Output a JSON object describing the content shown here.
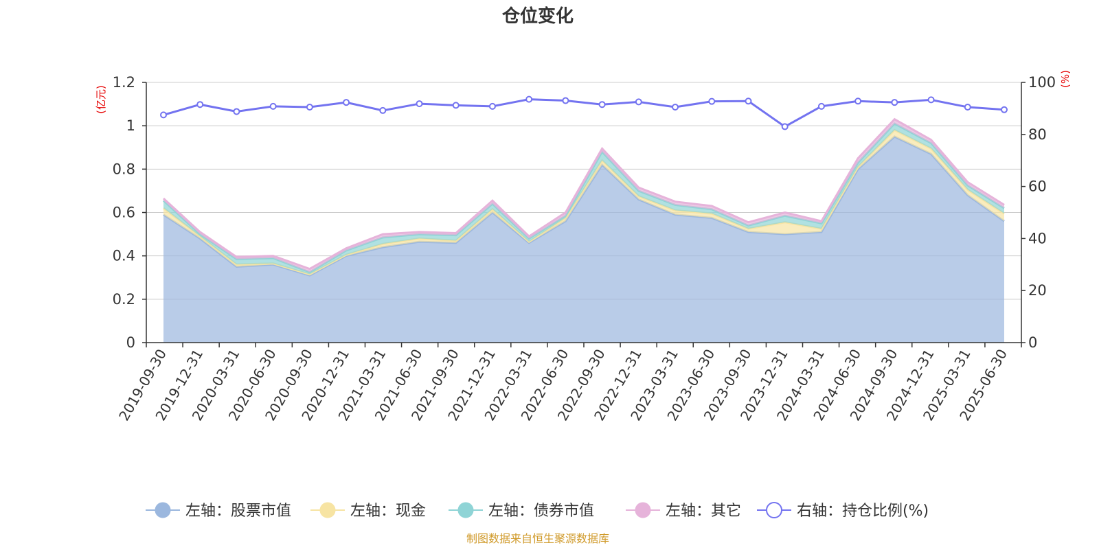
{
  "chart_data": {
    "type": "area",
    "title": "仓位变化",
    "left_axis_unit": "(亿元)",
    "right_axis_unit": "(%)",
    "ylim_left": [
      0,
      1.2
    ],
    "yticks_left": [
      "0",
      "0.2",
      "0.4",
      "0.6",
      "0.8",
      "1",
      "1.2"
    ],
    "ylim_right": [
      0,
      100
    ],
    "yticks_right": [
      "0",
      "20",
      "40",
      "60",
      "80",
      "100"
    ],
    "grid": true,
    "legend_position": "bottom",
    "source": "制图数据来自恒生聚源数据库",
    "categories": [
      "2019-09-30",
      "2019-12-31",
      "2020-03-31",
      "2020-06-30",
      "2020-09-30",
      "2020-12-31",
      "2021-03-31",
      "2021-06-30",
      "2021-09-30",
      "2021-12-31",
      "2022-03-31",
      "2022-06-30",
      "2022-09-30",
      "2022-12-31",
      "2023-03-31",
      "2023-06-30",
      "2023-09-30",
      "2023-12-31",
      "2024-03-31",
      "2024-06-30",
      "2024-09-30",
      "2024-12-31",
      "2025-03-31",
      "2025-06-30"
    ],
    "stack_series": [
      {
        "name": "左轴：股票市值",
        "axis": "left",
        "color": "#9bb7de",
        "values": [
          0.59,
          0.48,
          0.35,
          0.36,
          0.31,
          0.4,
          0.44,
          0.465,
          0.46,
          0.6,
          0.46,
          0.56,
          0.82,
          0.66,
          0.59,
          0.575,
          0.51,
          0.5,
          0.51,
          0.8,
          0.95,
          0.87,
          0.68,
          0.56
        ]
      },
      {
        "name": "左轴：现金",
        "axis": "left",
        "color": "#f7e4a3",
        "values": [
          0.03,
          0.01,
          0.01,
          0.005,
          0.005,
          0.005,
          0.015,
          0.015,
          0.01,
          0.015,
          0.005,
          0.015,
          0.02,
          0.015,
          0.02,
          0.02,
          0.015,
          0.055,
          0.015,
          0.01,
          0.03,
          0.025,
          0.025,
          0.035
        ]
      },
      {
        "name": "左轴：债券市值",
        "axis": "left",
        "color": "#8fd4d6",
        "values": [
          0.035,
          0.01,
          0.025,
          0.025,
          0.01,
          0.02,
          0.03,
          0.02,
          0.025,
          0.025,
          0.015,
          0.01,
          0.04,
          0.025,
          0.025,
          0.02,
          0.015,
          0.03,
          0.025,
          0.02,
          0.03,
          0.025,
          0.02,
          0.025
        ]
      },
      {
        "name": "左轴：其它",
        "axis": "left",
        "color": "#e6b3da",
        "values": [
          0.01,
          0.01,
          0.01,
          0.01,
          0.015,
          0.01,
          0.015,
          0.01,
          0.01,
          0.015,
          0.01,
          0.015,
          0.015,
          0.015,
          0.015,
          0.015,
          0.015,
          0.015,
          0.01,
          0.02,
          0.02,
          0.015,
          0.015,
          0.015
        ]
      }
    ],
    "line_series": {
      "name": "右轴：持仓比例(%)",
      "axis": "right",
      "color": "#7373f0",
      "values": [
        87.5,
        91.5,
        88.8,
        90.8,
        90.5,
        92.3,
        89.2,
        91.8,
        91.2,
        90.8,
        93.5,
        93.0,
        91.5,
        92.5,
        90.5,
        92.7,
        92.8,
        83.0,
        90.8,
        92.8,
        92.3,
        93.3,
        90.5,
        89.5
      ]
    }
  }
}
